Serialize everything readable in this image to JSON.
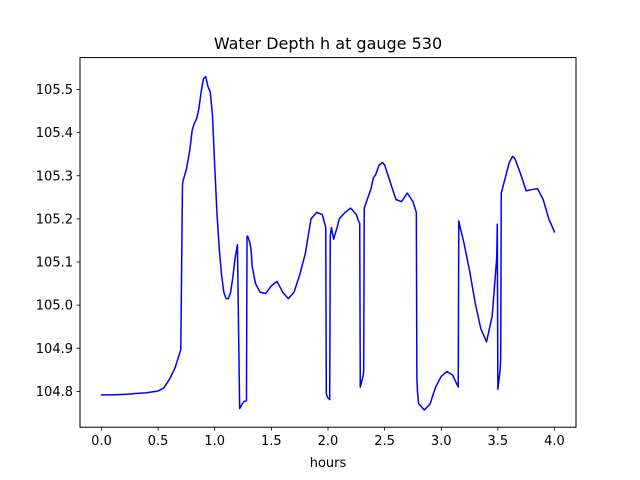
{
  "chart_data": {
    "type": "line",
    "title": "Water Depth h at gauge 530",
    "xlabel": "hours",
    "ylabel": "",
    "xlim": [
      -0.19,
      4.19
    ],
    "ylim": [
      104.717,
      105.574
    ],
    "xticks": [
      0.0,
      0.5,
      1.0,
      1.5,
      2.0,
      2.5,
      3.0,
      3.5,
      4.0
    ],
    "xtick_labels": [
      "0.0",
      "0.5",
      "1.0",
      "1.5",
      "2.0",
      "2.5",
      "3.0",
      "3.5",
      "4.0"
    ],
    "yticks": [
      104.8,
      104.9,
      105.0,
      105.1,
      105.2,
      105.3,
      105.4,
      105.5
    ],
    "ytick_labels": [
      "104.8",
      "104.9",
      "105.0",
      "105.1",
      "105.2",
      "105.3",
      "105.4",
      "105.5"
    ],
    "grid": false,
    "series": [
      {
        "name": "",
        "color": "#0000ff",
        "x": [
          0.0,
          0.1,
          0.2,
          0.3,
          0.4,
          0.5,
          0.55,
          0.6,
          0.65,
          0.7,
          0.715,
          0.72,
          0.75,
          0.78,
          0.8,
          0.82,
          0.84,
          0.86,
          0.88,
          0.9,
          0.92,
          0.94,
          0.96,
          0.98,
          1.0,
          1.02,
          1.04,
          1.06,
          1.08,
          1.1,
          1.12,
          1.14,
          1.16,
          1.18,
          1.2,
          1.22,
          1.24,
          1.26,
          1.28,
          1.285,
          1.29,
          1.31,
          1.32,
          1.325,
          1.33,
          1.36,
          1.4,
          1.45,
          1.5,
          1.55,
          1.6,
          1.65,
          1.7,
          1.75,
          1.8,
          1.85,
          1.9,
          1.95,
          1.98,
          1.985,
          1.99,
          2.0,
          2.015,
          2.02,
          2.03,
          2.05,
          2.08,
          2.1,
          2.15,
          2.2,
          2.25,
          2.27,
          2.28,
          2.285,
          2.29,
          2.31,
          2.315,
          2.32,
          2.34,
          2.36,
          2.38,
          2.4,
          2.42,
          2.45,
          2.48,
          2.5,
          2.55,
          2.6,
          2.65,
          2.7,
          2.75,
          2.78,
          2.785,
          2.79,
          2.8,
          2.85,
          2.9,
          2.95,
          3.0,
          3.05,
          3.1,
          3.15,
          3.155,
          3.16,
          3.2,
          3.25,
          3.3,
          3.35,
          3.4,
          3.45,
          3.49,
          3.495,
          3.5,
          3.52,
          3.525,
          3.53,
          3.55,
          3.6,
          3.63,
          3.65,
          3.7,
          3.75,
          3.8,
          3.85,
          3.9,
          3.95,
          4.0
        ],
        "y": [
          104.792,
          104.792,
          104.793,
          104.795,
          104.797,
          104.801,
          104.808,
          104.828,
          104.855,
          104.897,
          105.28,
          105.288,
          105.316,
          105.36,
          105.405,
          105.422,
          105.432,
          105.456,
          105.495,
          105.525,
          105.53,
          105.507,
          105.494,
          105.44,
          105.32,
          105.21,
          105.13,
          105.07,
          105.03,
          105.015,
          105.015,
          105.03,
          105.065,
          105.11,
          105.14,
          104.76,
          104.77,
          104.777,
          104.778,
          105.16,
          105.16,
          105.145,
          105.13,
          105.113,
          105.09,
          105.05,
          105.03,
          105.027,
          105.045,
          105.055,
          105.03,
          105.015,
          105.03,
          105.07,
          105.12,
          105.2,
          105.215,
          105.21,
          105.18,
          104.795,
          104.79,
          104.785,
          104.781,
          105.16,
          105.18,
          105.153,
          105.18,
          105.2,
          105.215,
          105.225,
          105.21,
          105.195,
          105.19,
          104.81,
          104.815,
          104.836,
          104.846,
          105.225,
          105.24,
          105.255,
          105.27,
          105.295,
          105.302,
          105.324,
          105.331,
          105.325,
          105.285,
          105.245,
          105.24,
          105.26,
          105.24,
          105.215,
          104.83,
          104.8,
          104.772,
          104.757,
          104.77,
          104.81,
          104.835,
          104.846,
          104.838,
          104.81,
          105.195,
          105.188,
          105.145,
          105.08,
          105.005,
          104.945,
          104.915,
          104.975,
          105.11,
          105.188,
          104.805,
          104.85,
          104.875,
          105.26,
          105.28,
          105.33,
          105.345,
          105.34,
          105.305,
          105.265,
          105.268,
          105.27,
          105.245,
          105.2,
          105.17
        ]
      }
    ]
  }
}
